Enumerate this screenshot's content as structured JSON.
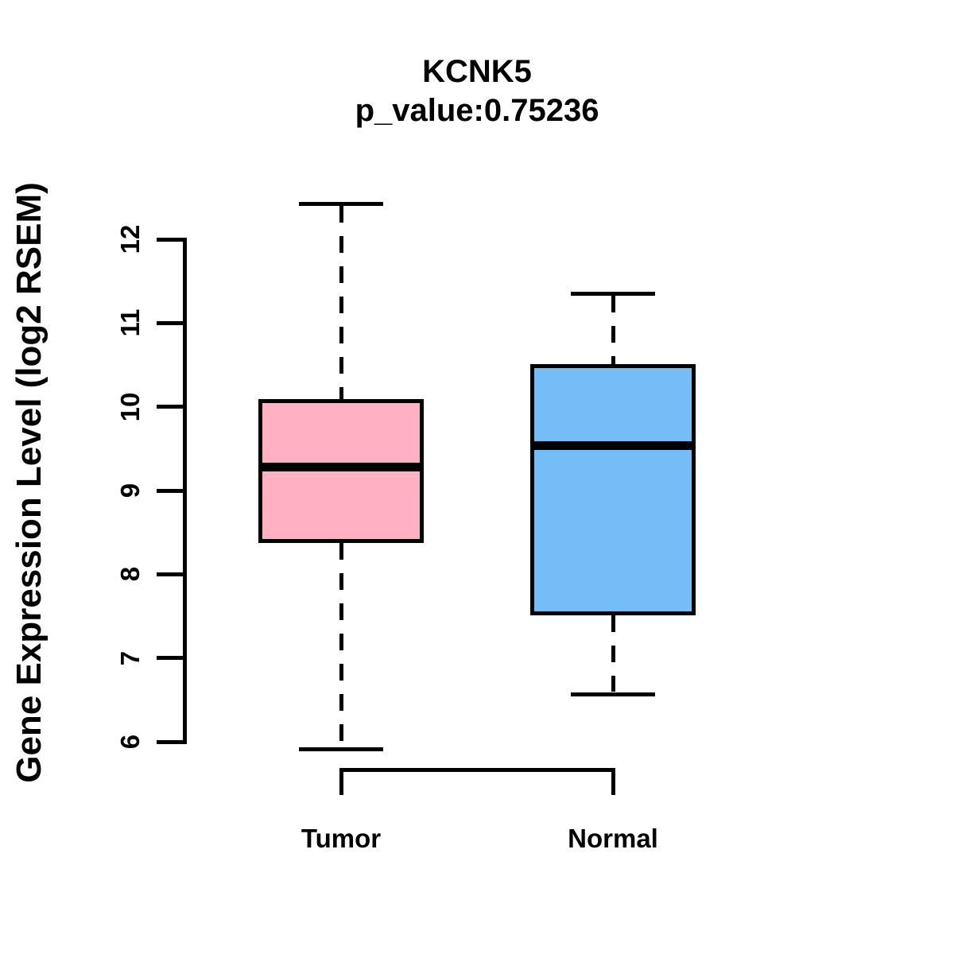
{
  "chart_data": {
    "type": "boxplot",
    "title": "KCNK5",
    "subtitle": "p_value:0.75236",
    "ylabel": "Gene Expression Level (log2 RSEM)",
    "xlabel": "",
    "yticks": [
      6,
      7,
      8,
      9,
      10,
      11,
      12
    ],
    "ylim": [
      5.7,
      12.6
    ],
    "grid": false,
    "legend": "none",
    "categories": [
      "Tumor",
      "Normal"
    ],
    "series": [
      {
        "name": "Tumor",
        "fill_color": "#FFB1C3",
        "stats": {
          "min": 5.91,
          "q1": 8.4,
          "median": 9.28,
          "q3": 10.07,
          "max": 12.42
        }
      },
      {
        "name": "Normal",
        "fill_color": "#74BDF7",
        "stats": {
          "min": 6.57,
          "q1": 7.53,
          "median": 9.54,
          "q3": 10.49,
          "max": 11.35
        }
      }
    ],
    "colors": {
      "line": "#000000",
      "text": "#000000",
      "background": "#FFFFFF"
    }
  }
}
